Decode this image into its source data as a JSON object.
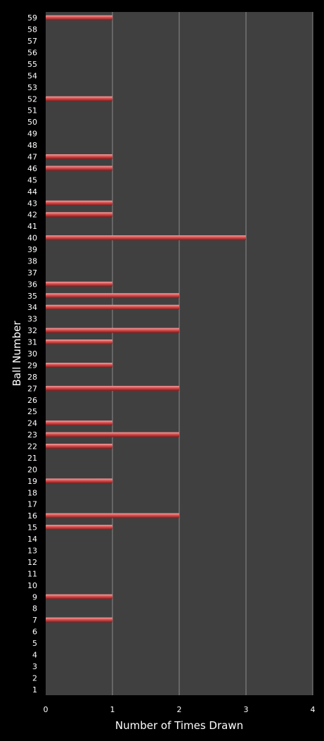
{
  "chart_data": {
    "type": "bar",
    "orientation": "horizontal",
    "xlabel": "Number of Times Drawn",
    "ylabel": "Ball Number",
    "xlim": [
      0,
      4
    ],
    "x_ticks": [
      "0",
      "1",
      "2",
      "3",
      "4"
    ],
    "grid": true,
    "categories": [
      "1",
      "2",
      "3",
      "4",
      "5",
      "6",
      "7",
      "8",
      "9",
      "10",
      "11",
      "12",
      "13",
      "14",
      "15",
      "16",
      "17",
      "18",
      "19",
      "20",
      "21",
      "22",
      "23",
      "24",
      "25",
      "26",
      "27",
      "28",
      "29",
      "30",
      "31",
      "32",
      "33",
      "34",
      "35",
      "36",
      "37",
      "38",
      "39",
      "40",
      "41",
      "42",
      "43",
      "44",
      "45",
      "46",
      "47",
      "48",
      "49",
      "50",
      "51",
      "52",
      "53",
      "54",
      "55",
      "56",
      "57",
      "58",
      "59"
    ],
    "values": [
      0,
      0,
      0,
      0,
      0,
      0,
      1,
      0,
      1,
      0,
      0,
      0,
      0,
      0,
      1,
      2,
      0,
      0,
      1,
      0,
      0,
      1,
      2,
      1,
      0,
      0,
      2,
      0,
      1,
      0,
      1,
      2,
      0,
      2,
      2,
      1,
      0,
      0,
      0,
      3,
      0,
      1,
      1,
      0,
      0,
      1,
      1,
      0,
      0,
      0,
      0,
      1,
      0,
      0,
      0,
      0,
      0,
      0,
      1
    ],
    "colors": {
      "page_background": "#000000",
      "plot_background": "#404040",
      "gridline": "#8c8c8c",
      "bar": "#d04848",
      "bar_highlight": "#f08a8a",
      "text": "#ffffff"
    }
  }
}
